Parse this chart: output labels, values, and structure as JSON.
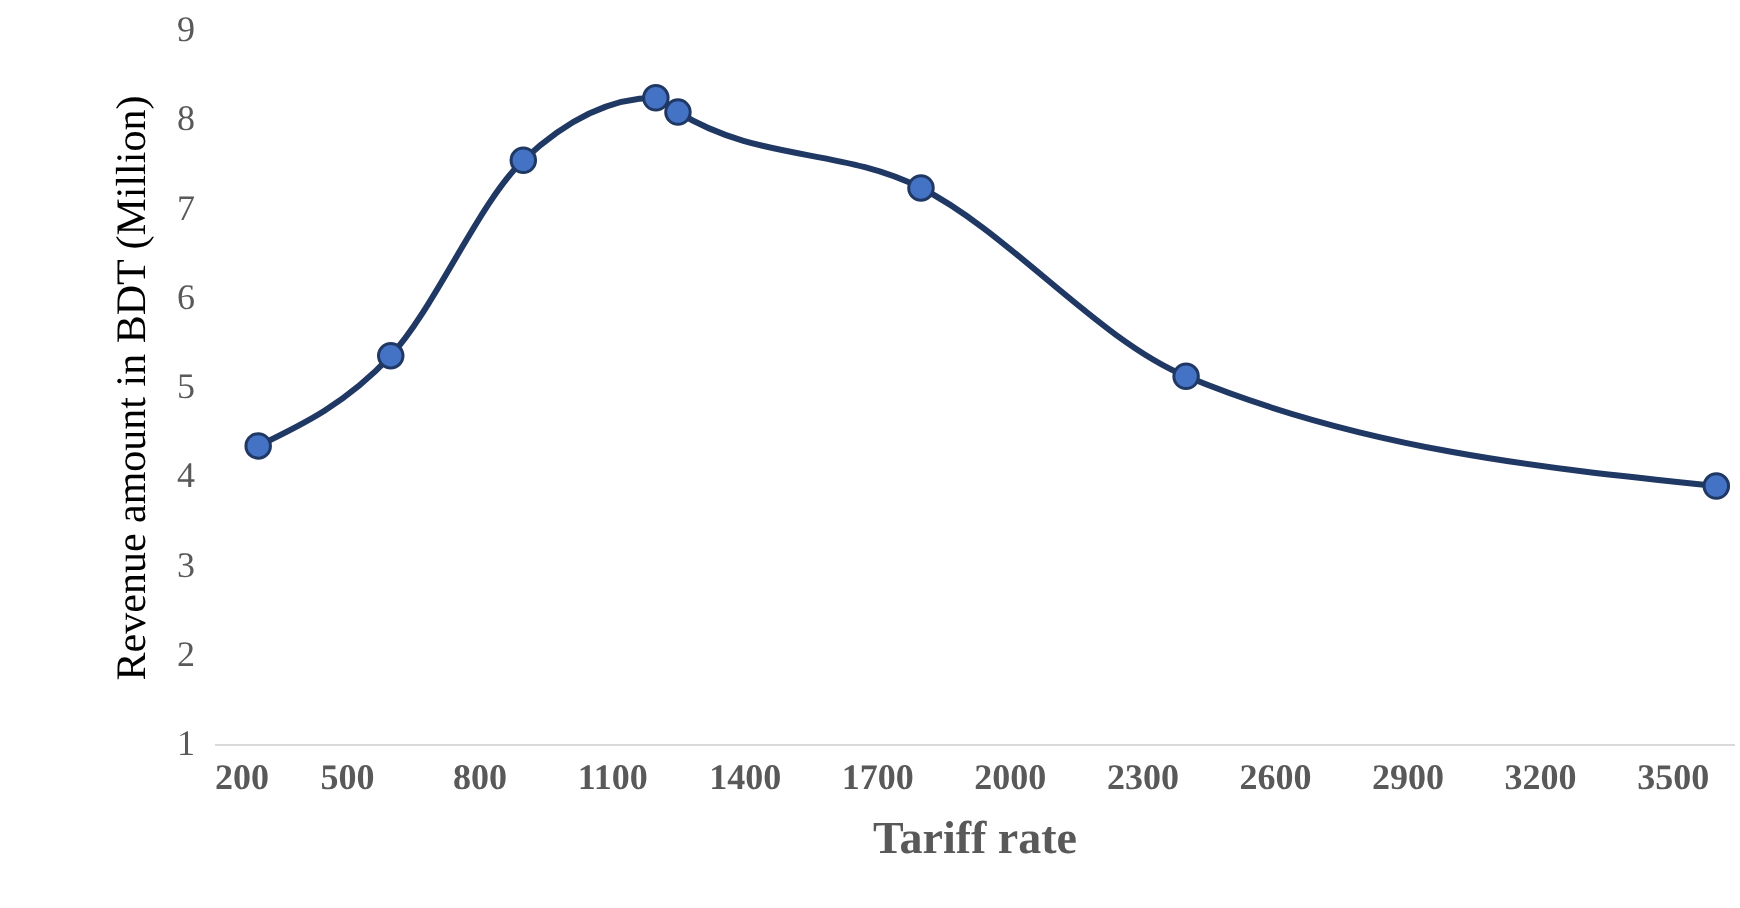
{
  "chart_data": {
    "type": "line",
    "xlabel": "Tariff rate",
    "ylabel": "Revenue amount in BDT (Million)",
    "x": [
      300,
      600,
      900,
      1200,
      1250,
      1800,
      2400,
      3600
    ],
    "series": [
      {
        "color": "#203864",
        "values": [
          4.34,
          5.35,
          7.54,
          8.24,
          8.08,
          7.23,
          5.12,
          3.89
        ]
      }
    ],
    "xlim": [
      200,
      3640
    ],
    "xticks": [
      200,
      500,
      800,
      1100,
      1400,
      1700,
      2000,
      2300,
      2600,
      2900,
      3200,
      3500
    ],
    "ylim": [
      1,
      9
    ],
    "yticks": [
      1,
      2,
      3,
      4,
      5,
      6,
      7,
      8,
      9
    ],
    "marker": "circle",
    "line_style": "solid"
  }
}
